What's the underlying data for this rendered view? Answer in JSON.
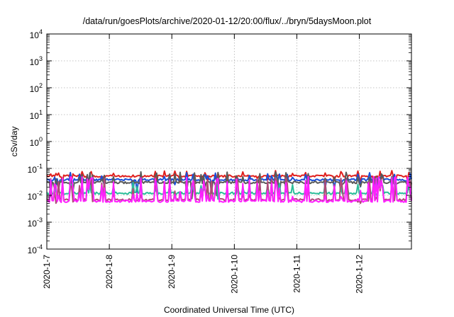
{
  "chart_data": {
    "type": "line",
    "title": "/data/run/goesPlots/archive/2020-01-12/20:00/flux/../bryn/5daysMoon.plot",
    "xlabel": "Coordinated Universal Time (UTC)",
    "ylabel": "cSv/day",
    "yscale": "log",
    "ylim": [
      0.0001,
      10000
    ],
    "xlim": [
      "2020-01-07",
      "2020-01-12 20:00"
    ],
    "grid": true,
    "y_ticks": [
      {
        "base": "10",
        "exp": "-4"
      },
      {
        "base": "10",
        "exp": "-3"
      },
      {
        "base": "10",
        "exp": "-2"
      },
      {
        "base": "10",
        "exp": "-1"
      },
      {
        "base": "10",
        "exp": "0"
      },
      {
        "base": "10",
        "exp": "1"
      },
      {
        "base": "10",
        "exp": "2"
      },
      {
        "base": "10",
        "exp": "3"
      },
      {
        "base": "10",
        "exp": "4"
      }
    ],
    "x_ticks": [
      "2020-1-7",
      "2020-1-8",
      "2020-1-9",
      "2020-1-10",
      "2020-1-11",
      "2020-1-12"
    ],
    "series": [
      {
        "color": "#e0201e",
        "base": 0.052,
        "spike_min": 0.03,
        "spike_max": 0.085
      },
      {
        "color": "#1a4fd8",
        "base": 0.038,
        "spike_min": 0.012,
        "spike_max": 0.07
      },
      {
        "color": "#5a5a5a",
        "base": 0.03,
        "spike_min": 0.007,
        "spike_max": 0.075
      },
      {
        "color": "#2dbe9a",
        "base": 0.012,
        "spike_min": 0.007,
        "spike_max": 0.03
      },
      {
        "color": "#b04a78",
        "base": 0.0068,
        "spike_min": 0.005,
        "spike_max": 0.045
      },
      {
        "color": "#ff20ff",
        "base": 0.006,
        "spike_min": 0.005,
        "spike_max": 0.05
      }
    ]
  }
}
